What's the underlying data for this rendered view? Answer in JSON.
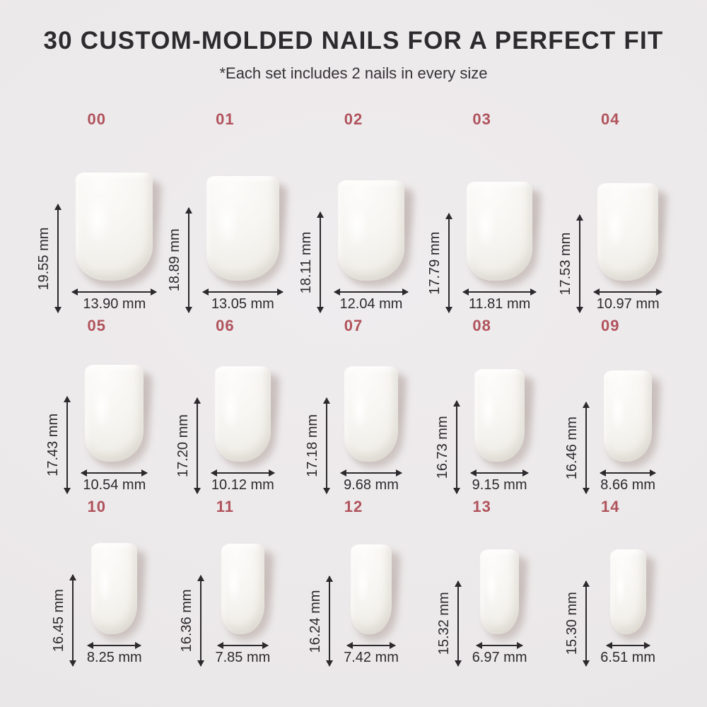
{
  "header": {
    "title": "30 CUSTOM-MOLDED NAILS FOR A PERFECT FIT",
    "subtitle": "*Each set includes 2 nails in every size"
  },
  "unit": "mm",
  "colors": {
    "background": "#edeaeb",
    "accent_size_number": "#b0525b",
    "measure_text": "#2c2a2d",
    "nail": "#f6f4f0",
    "nail_shadow": "#c5bab6"
  },
  "sizes": [
    {
      "id": "00",
      "height": "19.55 mm",
      "width": "13.90 mm"
    },
    {
      "id": "01",
      "height": "18.89 mm",
      "width": "13.05 mm"
    },
    {
      "id": "02",
      "height": "18.11 mm",
      "width": "12.04 mm"
    },
    {
      "id": "03",
      "height": "17.79 mm",
      "width": "11.81 mm"
    },
    {
      "id": "04",
      "height": "17.53 mm",
      "width": "10.97 mm"
    },
    {
      "id": "05",
      "height": "17.43 mm",
      "width": "10.54 mm"
    },
    {
      "id": "06",
      "height": "17.20 mm",
      "width": "10.12 mm"
    },
    {
      "id": "07",
      "height": "17.18 mm",
      "width": "9.68 mm"
    },
    {
      "id": "08",
      "height": "16.73 mm",
      "width": "9.15 mm"
    },
    {
      "id": "09",
      "height": "16.46 mm",
      "width": "8.66 mm"
    },
    {
      "id": "10",
      "height": "16.45 mm",
      "width": "8.25 mm"
    },
    {
      "id": "11",
      "height": "16.36 mm",
      "width": "7.85 mm"
    },
    {
      "id": "12",
      "height": "16.24 mm",
      "width": "7.42 mm"
    },
    {
      "id": "13",
      "height": "15.32 mm",
      "width": "6.97 mm"
    },
    {
      "id": "14",
      "height": "15.30 mm",
      "width": "6.51 mm"
    }
  ]
}
